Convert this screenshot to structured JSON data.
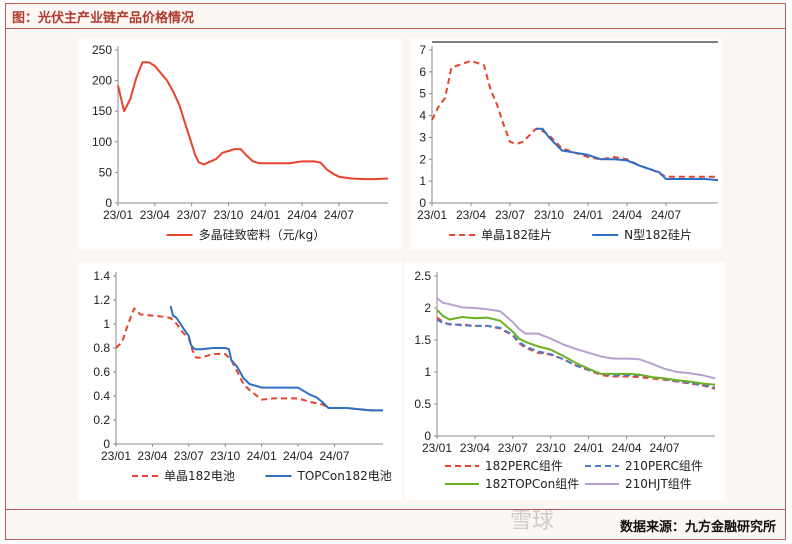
{
  "title": "图：光伏主产业链产品价格情况",
  "source": "数据来源：九方金融研究所",
  "watermark": "雪球",
  "colors": {
    "red": "#e8432c",
    "blue": "#2e6fc4",
    "green": "#6ab023",
    "purple": "#b7a1d2",
    "frame": "#b65c5c"
  },
  "chart_data": [
    {
      "type": "line",
      "xticks": [
        "23/01",
        "23/04",
        "23/07",
        "23/10",
        "24/01",
        "24/04",
        "24/07"
      ],
      "xrange": [
        0,
        22
      ],
      "ylim": [
        0,
        250
      ],
      "yticks": [
        0,
        50,
        100,
        150,
        200,
        250
      ],
      "legend_position": "bottom",
      "series": [
        {
          "name": "多晶硅致密料（元/kg）",
          "color": "#e8432c",
          "dash": "solid",
          "x": [
            0,
            0.5,
            1,
            1.5,
            2,
            2.5,
            3,
            3.5,
            4,
            4.5,
            5,
            5.5,
            6,
            6.3,
            6.6,
            7,
            8,
            8.5,
            9,
            9.5,
            10,
            10.5,
            11,
            11.5,
            12,
            13,
            14,
            15,
            16,
            16.5,
            17,
            17.5,
            18,
            19,
            20,
            21,
            22
          ],
          "y": [
            192,
            150,
            170,
            205,
            230,
            230,
            224,
            212,
            200,
            182,
            160,
            128,
            97,
            78,
            66,
            63,
            72,
            82,
            85,
            88,
            88,
            77,
            68,
            65,
            65,
            65,
            65,
            68,
            68,
            66,
            55,
            48,
            43,
            40,
            39,
            39,
            40
          ]
        }
      ]
    },
    {
      "type": "line",
      "xticks": [
        "23/01",
        "23/04",
        "23/07",
        "23/10",
        "24/01",
        "24/04",
        "24/07"
      ],
      "xrange": [
        0,
        22
      ],
      "ylim": [
        0,
        7
      ],
      "yticks": [
        0,
        1,
        2,
        3,
        4,
        5,
        6,
        7
      ],
      "legend_position": "bottom",
      "series": [
        {
          "name": "单晶182硅片",
          "color": "#e8432c",
          "dash": "dashed",
          "x": [
            0,
            0.5,
            1,
            1.5,
            2,
            2.5,
            3,
            3.5,
            4,
            4.5,
            5,
            5.5,
            6,
            6.5,
            7,
            7.5,
            8,
            8.5,
            9,
            9.5,
            10,
            10.5,
            11,
            12,
            13,
            14,
            15,
            16,
            17,
            18,
            19,
            20,
            21,
            22
          ],
          "y": [
            3.8,
            4.4,
            4.8,
            6.2,
            6.3,
            6.4,
            6.5,
            6.4,
            6.3,
            5.2,
            4.5,
            3.6,
            2.8,
            2.7,
            2.8,
            3.1,
            3.4,
            3.3,
            3.1,
            2.8,
            2.5,
            2.4,
            2.3,
            2.1,
            2.0,
            2.1,
            2.0,
            1.7,
            1.5,
            1.2,
            1.2,
            1.2,
            1.2,
            1.2
          ]
        },
        {
          "name": "N型182硅片",
          "color": "#2e6fc4",
          "dash": "solid",
          "x": [
            8,
            8.5,
            9,
            9.5,
            10,
            10.5,
            11,
            12,
            13,
            14,
            15,
            16,
            16.5,
            17,
            17.5,
            18,
            19,
            20,
            21,
            22
          ],
          "y": [
            3.4,
            3.4,
            3.0,
            2.7,
            2.4,
            2.35,
            2.3,
            2.2,
            2.0,
            2.0,
            1.95,
            1.7,
            1.6,
            1.5,
            1.4,
            1.1,
            1.1,
            1.1,
            1.1,
            1.05
          ]
        }
      ]
    },
    {
      "type": "line",
      "xticks": [
        "23/01",
        "23/04",
        "23/07",
        "23/10",
        "24/01",
        "24/04",
        "24/07"
      ],
      "xrange": [
        0,
        22
      ],
      "ylim": [
        0,
        1.4
      ],
      "yticks": [
        0,
        0.2,
        0.4,
        0.6,
        0.8,
        1.0,
        1.2,
        1.4
      ],
      "ytick_labels": [
        "0",
        "0.2",
        "0.4",
        "0.6",
        "0.8",
        "1",
        "1.2",
        "1.4"
      ],
      "legend_position": "bottom",
      "series": [
        {
          "name": "单晶182电池",
          "color": "#e8432c",
          "dash": "dashed",
          "x": [
            0,
            0.5,
            1,
            1.5,
            2,
            3,
            4,
            4.5,
            5,
            5.5,
            6,
            6.3,
            6.6,
            7,
            8,
            8.5,
            9,
            9.5,
            10,
            10.5,
            11,
            12,
            13,
            14,
            15,
            16,
            17,
            17.5,
            18,
            19,
            20,
            21,
            22
          ],
          "y": [
            0.8,
            0.85,
            1.0,
            1.13,
            1.08,
            1.07,
            1.06,
            1.05,
            1.0,
            0.93,
            0.88,
            0.78,
            0.72,
            0.72,
            0.75,
            0.75,
            0.75,
            0.7,
            0.6,
            0.5,
            0.45,
            0.37,
            0.38,
            0.38,
            0.38,
            0.35,
            0.33,
            0.3,
            0.3,
            0.3,
            0.29,
            0.28,
            0.28
          ]
        },
        {
          "name": "TOPCon182电池",
          "color": "#2e6fc4",
          "dash": "solid",
          "x": [
            4.5,
            4.7,
            5,
            5.5,
            6,
            6.2,
            6.5,
            7,
            8,
            8.5,
            9,
            9.3,
            9.5,
            10,
            10.5,
            11,
            12,
            13,
            14,
            15,
            15.5,
            16,
            16.5,
            17,
            17.5,
            18,
            19,
            20,
            21,
            22
          ],
          "y": [
            1.15,
            1.07,
            1.05,
            0.97,
            0.9,
            0.82,
            0.79,
            0.79,
            0.8,
            0.8,
            0.8,
            0.79,
            0.7,
            0.64,
            0.55,
            0.5,
            0.47,
            0.47,
            0.47,
            0.47,
            0.44,
            0.41,
            0.39,
            0.35,
            0.3,
            0.3,
            0.3,
            0.29,
            0.28,
            0.28
          ]
        }
      ]
    },
    {
      "type": "line",
      "xticks": [
        "23/01",
        "23/04",
        "23/07",
        "23/10",
        "24/01",
        "24/04",
        "24/07"
      ],
      "xrange": [
        0,
        22
      ],
      "ylim": [
        0,
        2.5
      ],
      "yticks": [
        0,
        0.5,
        1.0,
        1.5,
        2.0,
        2.5
      ],
      "ytick_labels": [
        "0",
        "0.5",
        "1",
        "1.5",
        "2",
        "2.5"
      ],
      "legend_position": "bottom",
      "series": [
        {
          "name": "182PERC组件",
          "color": "#e8432c",
          "dash": "dashed",
          "x": [
            0,
            0.5,
            1,
            2,
            3,
            4,
            5,
            6,
            6.5,
            7,
            8,
            9,
            10,
            11,
            12,
            13,
            14,
            15,
            16,
            17,
            18,
            19,
            20,
            21,
            22
          ],
          "y": [
            1.85,
            1.78,
            1.74,
            1.74,
            1.72,
            1.72,
            1.68,
            1.57,
            1.45,
            1.38,
            1.3,
            1.27,
            1.2,
            1.1,
            1.03,
            0.95,
            0.93,
            0.93,
            0.92,
            0.9,
            0.88,
            0.85,
            0.82,
            0.79,
            0.74
          ]
        },
        {
          "name": "210PERC组件",
          "color": "#4a7ed0",
          "dash": "dashed",
          "x": [
            0,
            0.5,
            1,
            2,
            3,
            4,
            5,
            6,
            6.5,
            7,
            8,
            9,
            10,
            11,
            12,
            13,
            14,
            15,
            16,
            17,
            18,
            19,
            20,
            21,
            22
          ],
          "y": [
            1.82,
            1.76,
            1.75,
            1.73,
            1.72,
            1.72,
            1.69,
            1.58,
            1.47,
            1.4,
            1.32,
            1.28,
            1.2,
            1.1,
            1.03,
            0.97,
            0.95,
            0.95,
            0.95,
            0.92,
            0.89,
            0.86,
            0.83,
            0.8,
            0.76
          ]
        },
        {
          "name": "182TOPCon组件",
          "color": "#6ab023",
          "dash": "solid",
          "x": [
            0,
            0.5,
            1,
            2,
            3,
            4,
            5,
            6,
            6.5,
            7,
            8,
            9,
            10,
            11,
            12,
            13,
            14,
            15,
            16,
            17,
            18,
            19,
            20,
            21,
            22
          ],
          "y": [
            1.97,
            1.87,
            1.82,
            1.86,
            1.84,
            1.85,
            1.8,
            1.63,
            1.52,
            1.47,
            1.4,
            1.35,
            1.25,
            1.14,
            1.05,
            0.97,
            0.97,
            0.97,
            0.96,
            0.92,
            0.9,
            0.87,
            0.85,
            0.82,
            0.8
          ]
        },
        {
          "name": "210HJT组件",
          "color": "#b7a1d2",
          "dash": "solid",
          "x": [
            0,
            0.5,
            1,
            2,
            3,
            4,
            5,
            6,
            6.5,
            7,
            8,
            9,
            10,
            11,
            12,
            13,
            14,
            15,
            16,
            17,
            18,
            19,
            20,
            21,
            22
          ],
          "y": [
            2.15,
            2.08,
            2.06,
            2.01,
            2.0,
            1.98,
            1.95,
            1.78,
            1.67,
            1.6,
            1.6,
            1.52,
            1.43,
            1.36,
            1.3,
            1.24,
            1.21,
            1.21,
            1.2,
            1.13,
            1.05,
            1.0,
            0.98,
            0.95,
            0.9
          ]
        }
      ]
    }
  ]
}
